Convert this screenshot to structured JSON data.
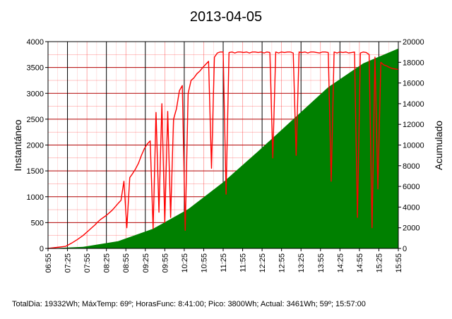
{
  "chart_data": {
    "type": "line",
    "title": "2013-04-05",
    "ylabel_left": "Instantáneo",
    "ylabel_right": "Acumulado",
    "ylim_left": [
      0,
      4000
    ],
    "ylim_right": [
      0,
      20000
    ],
    "y_ticks_left": [
      "0",
      "500",
      "1000",
      "1500",
      "2000",
      "2500",
      "3000",
      "3500",
      "4000"
    ],
    "y_ticks_right": [
      "0",
      "2000",
      "4000",
      "6000",
      "8000",
      "10000",
      "12000",
      "14000",
      "16000",
      "18000",
      "20000"
    ],
    "x_tick_labels": [
      "06:55",
      "07:25",
      "07:55",
      "08:25",
      "08:55",
      "09:25",
      "09:55",
      "10:25",
      "10:55",
      "11:25",
      "11:55",
      "12:25",
      "12:55",
      "13:25",
      "13:55",
      "14:25",
      "14:55",
      "15:25",
      "15:55"
    ],
    "grid": true,
    "colors": {
      "instant": "#ff0000",
      "accumulated": "#008000",
      "grid_major": "#000000",
      "grid_minor": "#ff0000"
    },
    "series": [
      {
        "name": "Instantáneo",
        "axis": "left",
        "style": "line",
        "x_min": [
          0,
          30,
          40,
          50,
          60,
          70,
          80,
          85,
          90,
          100,
          110,
          120,
          125,
          130,
          135,
          140,
          145,
          150,
          155,
          160,
          165,
          170,
          175,
          180,
          185,
          190,
          195,
          200,
          205,
          210,
          215,
          220,
          225,
          230,
          235,
          240,
          245,
          250,
          255,
          260,
          265,
          270,
          275,
          280,
          285,
          290,
          295,
          300,
          305,
          310,
          315,
          320,
          325,
          330,
          335,
          340,
          345,
          350,
          355,
          360,
          365,
          370,
          375,
          380,
          385,
          390,
          395,
          400,
          405,
          410,
          415,
          420,
          425,
          430,
          435,
          440,
          445,
          450,
          455,
          460,
          465,
          470,
          475,
          480,
          485,
          490,
          495,
          500,
          505,
          510,
          515,
          520,
          525,
          530,
          535,
          540,
          545,
          550,
          555,
          560,
          565,
          570,
          575,
          580,
          585,
          590,
          595,
          600
        ],
        "values": [
          0,
          40,
          100,
          170,
          250,
          350,
          450,
          510,
          560,
          640,
          740,
          870,
          930,
          1300,
          400,
          1370,
          1450,
          1540,
          1650,
          1800,
          1930,
          2020,
          2080,
          380,
          2630,
          700,
          2800,
          500,
          2650,
          600,
          2500,
          2700,
          3050,
          3150,
          350,
          3000,
          3250,
          3300,
          3380,
          3430,
          3500,
          3560,
          3620,
          1550,
          3700,
          3780,
          3800,
          3800,
          1050,
          3790,
          3800,
          3780,
          3800,
          3800,
          3790,
          3800,
          3780,
          3800,
          3800,
          3790,
          3800,
          3780,
          3800,
          3790,
          1750,
          3800,
          3780,
          3800,
          3790,
          3800,
          3800,
          3780,
          1800,
          3800,
          3790,
          3800,
          3780,
          3800,
          3800,
          3790,
          3780,
          3800,
          3800,
          3790,
          1300,
          3800,
          3780,
          3800,
          3790,
          3800,
          3780,
          3790,
          3800,
          600,
          3780,
          3800,
          3790,
          3750,
          400,
          3700,
          1150,
          3600,
          3550,
          3530,
          3500,
          3480,
          3470,
          3461
        ]
      },
      {
        "name": "Acumulado",
        "axis": "right",
        "style": "area",
        "x_min": [
          0,
          60,
          120,
          180,
          240,
          300,
          360,
          420,
          480,
          540,
          600
        ],
        "values": [
          0,
          150,
          700,
          1900,
          3800,
          6400,
          9400,
          12500,
          15600,
          17900,
          19332
        ]
      }
    ]
  },
  "footer": {
    "text": "TotalDia: 19332Wh; MáxTemp: 69º; HorasFunc: 8:41:00; Pico: 3800Wh; Actual: 3461Wh; 59º; 15:57:00"
  }
}
